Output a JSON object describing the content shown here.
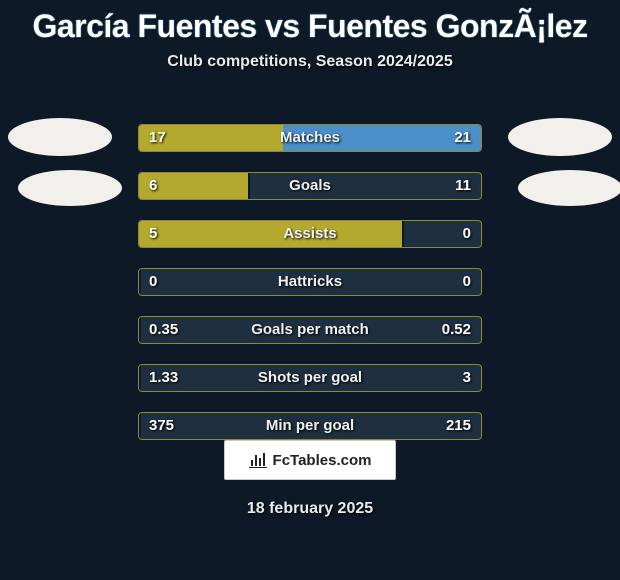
{
  "title": "García Fuentes vs Fuentes GonzÃ¡lez",
  "subtitle": "Club competitions, Season 2024/2025",
  "brand": "FcTables.com",
  "date": "18 february 2025",
  "colors": {
    "bg": "#0d1926",
    "left_fill": "#b3a92e",
    "right_fill": "#4a8fc7",
    "row_bg": "#1e2f3f",
    "border": "#8f8a32",
    "text": "#ffffff"
  },
  "rows": [
    {
      "label": "Matches",
      "left_val": "17",
      "right_val": "21",
      "left_w": 42,
      "right_w": 58
    },
    {
      "label": "Goals",
      "left_val": "6",
      "right_val": "11",
      "left_w": 32,
      "right_w": 0
    },
    {
      "label": "Assists",
      "left_val": "5",
      "right_val": "0",
      "left_w": 77,
      "right_w": 0
    },
    {
      "label": "Hattricks",
      "left_val": "0",
      "right_val": "0",
      "left_w": 0,
      "right_w": 0
    },
    {
      "label": "Goals per match",
      "left_val": "0.35",
      "right_val": "0.52",
      "left_w": 0,
      "right_w": 0
    },
    {
      "label": "Shots per goal",
      "left_val": "1.33",
      "right_val": "3",
      "left_w": 0,
      "right_w": 0
    },
    {
      "label": "Min per goal",
      "left_val": "375",
      "right_val": "215",
      "left_w": 0,
      "right_w": 0
    }
  ]
}
